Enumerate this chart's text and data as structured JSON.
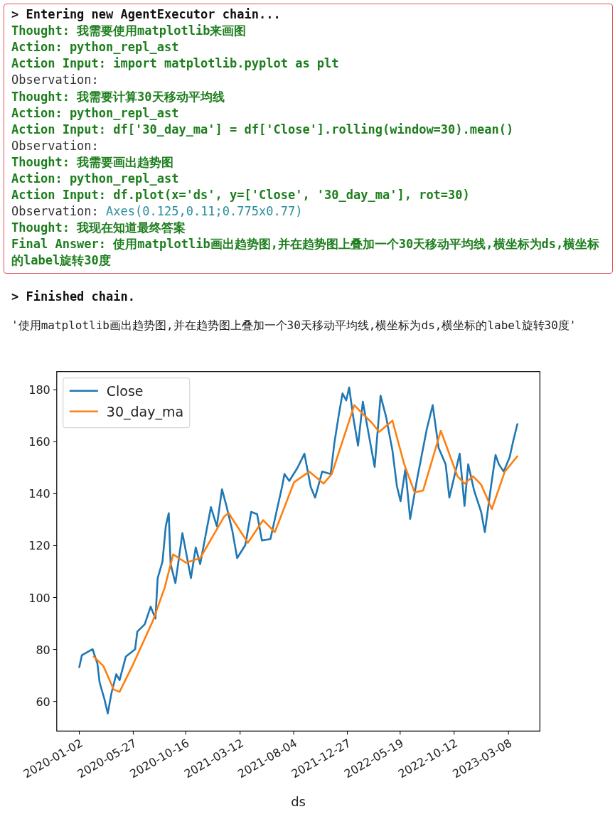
{
  "chart_data": {
    "type": "line",
    "xlabel": "ds",
    "legend": "top left",
    "annotations": [
      "> Entering new AgentExecutor chain...",
      "Thought: 我需要使用matplotlib来画图",
      "Action: python_repl_ast",
      "Action Input: import matplotlib.pyplot as plt",
      "Observation:",
      "Thought: 我需要计算30天移动平均线",
      "Action: python_repl_ast",
      "Action Input: df['30_day_ma'] = df['Close'].rolling(window=30).mean()",
      "Observation:",
      "Thought: 我需要画出趋势图",
      "Action: python_repl_ast",
      "Action Input: df.plot(x='ds', y=['Close', '30_day_ma'], rot=30)",
      "Observation:",
      "Axes(0.125,0.11;0.775x0.77)",
      "Thought: 我现在知道最终答案",
      "Final Answer: 使用matplotlib画出趋势图,并在趋势图上叠加一个30天移动平均线,横坐标为ds,横坐标的label旋转30度",
      "> Finished chain.",
      "'使用matplotlib画出趋势图,并在趋势图上叠加一个30天移动平均线,横坐标为ds,横坐标的label旋转30度'"
    ],
    "xlim": [
      "2019-11-02",
      "2023-06-01"
    ],
    "xticks": [
      {
        "value": "2020-01-02",
        "label": "2020-01-02"
      },
      {
        "value": "2020-05-27",
        "label": "2020-05-27"
      },
      {
        "value": "2020-10-16",
        "label": "2020-10-16"
      },
      {
        "value": "2021-03-12",
        "label": "2021-03-12"
      },
      {
        "value": "2021-08-04",
        "label": "2021-08-04"
      },
      {
        "value": "2021-12-27",
        "label": "2021-12-27"
      },
      {
        "value": "2022-05-19",
        "label": "2022-05-19"
      },
      {
        "value": "2022-10-12",
        "label": "2022-10-12"
      },
      {
        "value": "2023-03-08",
        "label": "2023-03-08"
      }
    ],
    "ylim": [
      48.6,
      187.0
    ],
    "yticks": [
      60,
      80,
      100,
      120,
      140,
      160,
      180
    ],
    "series": [
      {
        "name": "Close",
        "color": "#1f77b4",
        "x": [
          "2020-01-02",
          "2020-01-09",
          "2020-02-07",
          "2020-02-20",
          "2020-02-26",
          "2020-03-10",
          "2020-03-19",
          "2020-03-29",
          "2020-04-11",
          "2020-04-20",
          "2020-05-07",
          "2020-06-01",
          "2020-06-07",
          "2020-06-27",
          "2020-07-13",
          "2020-07-26",
          "2020-08-01",
          "2020-08-14",
          "2020-08-23",
          "2020-08-31",
          "2020-09-05",
          "2020-09-18",
          "2020-10-07",
          "2020-10-30",
          "2020-11-12",
          "2020-11-24",
          "2020-12-23",
          "2021-01-08",
          "2021-01-22",
          "2021-02-03",
          "2021-02-19",
          "2021-03-04",
          "2021-03-26",
          "2021-04-11",
          "2021-04-27",
          "2021-05-10",
          "2021-06-02",
          "2021-06-17",
          "2021-07-04",
          "2021-07-10",
          "2021-07-23",
          "2021-08-14",
          "2021-09-02",
          "2021-09-19",
          "2021-10-01",
          "2021-10-20",
          "2021-11-12",
          "2021-11-22",
          "2021-12-04",
          "2021-12-14",
          "2021-12-24",
          "2022-01-01",
          "2022-01-12",
          "2022-01-25",
          "2022-02-07",
          "2022-02-26",
          "2022-03-11",
          "2022-03-27",
          "2022-04-11",
          "2022-04-28",
          "2022-05-10",
          "2022-05-20",
          "2022-06-02",
          "2022-06-15",
          "2022-07-04",
          "2022-07-30",
          "2022-08-15",
          "2022-08-31",
          "2022-09-19",
          "2022-09-29",
          "2022-10-27",
          "2022-11-09",
          "2022-11-19",
          "2022-12-05",
          "2022-12-24",
          "2023-01-03",
          "2023-01-19",
          "2023-02-01",
          "2023-02-10",
          "2023-02-23",
          "2023-03-11",
          "2023-03-21",
          "2023-04-01"
        ],
        "values": [
          73.2,
          77.8,
          80.1,
          74.6,
          67.3,
          60.9,
          55.4,
          63.2,
          70.5,
          68.2,
          77.3,
          80.1,
          86.9,
          89.7,
          96.5,
          91.9,
          107.5,
          113.8,
          127.5,
          132.5,
          112.9,
          105.6,
          124.8,
          107.5,
          119.3,
          112.9,
          134.8,
          127.5,
          141.7,
          135.3,
          125.7,
          115.2,
          120.2,
          133.0,
          132.1,
          122.0,
          122.5,
          132.1,
          143.0,
          147.6,
          144.9,
          149.9,
          155.4,
          142.6,
          138.5,
          148.5,
          147.6,
          159.5,
          170.4,
          178.6,
          175.9,
          180.9,
          169.5,
          158.5,
          175.4,
          160.4,
          150.3,
          177.7,
          169.5,
          156.7,
          143.0,
          137.1,
          149.4,
          130.3,
          145.8,
          164.9,
          174.1,
          157.6,
          151.3,
          138.5,
          155.4,
          135.3,
          151.3,
          141.2,
          133.0,
          125.2,
          142.1,
          154.9,
          151.3,
          148.5,
          154.0,
          160.4,
          166.8
        ]
      },
      {
        "name": "30_day_ma",
        "color": "#ff7f0e",
        "x": [
          "2020-02-10",
          "2020-03-07",
          "2020-04-04",
          "2020-04-20",
          "2020-05-23",
          "2020-07-19",
          "2020-08-20",
          "2020-09-12",
          "2020-10-17",
          "2020-11-24",
          "2021-01-28",
          "2021-02-09",
          "2021-04-02",
          "2021-05-13",
          "2021-06-14",
          "2021-08-05",
          "2021-09-15",
          "2021-10-24",
          "2021-11-15",
          "2022-01-15",
          "2022-02-03",
          "2022-03-04",
          "2022-03-23",
          "2022-04-28",
          "2022-05-30",
          "2022-06-27",
          "2022-07-20",
          "2022-09-06",
          "2022-10-21",
          "2022-11-09",
          "2022-12-02",
          "2022-12-24",
          "2023-01-22",
          "2023-02-26",
          "2023-04-01"
        ],
        "values": [
          77.3,
          73.7,
          64.6,
          63.7,
          73.2,
          91.0,
          103.8,
          116.6,
          113.4,
          115.2,
          131.2,
          132.5,
          121.1,
          129.8,
          125.2,
          144.4,
          148.5,
          143.9,
          147.6,
          174.1,
          171.3,
          167.2,
          163.8,
          168.1,
          151.3,
          140.5,
          141.2,
          164.2,
          146.7,
          143.9,
          146.7,
          143.5,
          134.1,
          148.5,
          154.4
        ]
      }
    ]
  }
}
